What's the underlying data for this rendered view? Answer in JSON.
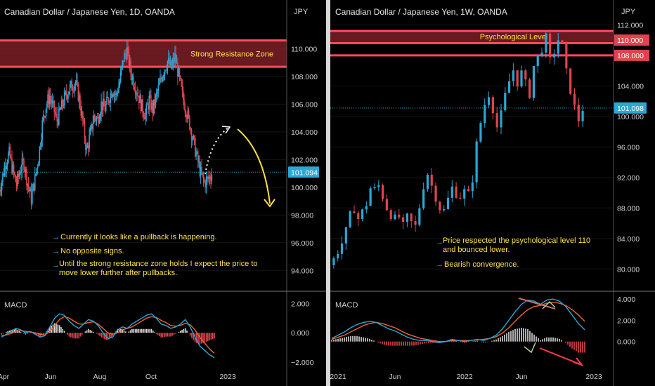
{
  "chart_data": [
    {
      "type": "candlestick",
      "title": "Canadian Dollar / Japanese Yen, 1D, OANDA",
      "currency_label": "JPY",
      "ylim": [
        93,
        112
      ],
      "price_ticks": [
        "110.000",
        "108.000",
        "106.000",
        "104.000",
        "102.000",
        "100.000",
        "98.000",
        "96.000",
        "94.000"
      ],
      "price_tick_values": [
        110,
        108,
        106,
        104,
        102,
        100,
        98,
        96,
        94
      ],
      "last_price": "101.094",
      "last_price_value": 101.094,
      "time_ticks": [
        "Apr",
        "Jun",
        "Aug",
        "Oct",
        "2023"
      ],
      "zone": {
        "label": "Strong Resistance Zone",
        "from": 108.7,
        "to": 110.6
      },
      "annotations": [
        "Currently it looks like a pullback is happening.",
        "No opposite signs.",
        "Until the strong resistance zone holds I expect the price to move lower further after pullbacks."
      ],
      "close_path": [
        99.5,
        100.5,
        101.8,
        102.4,
        101.2,
        100.2,
        101.3,
        101.8,
        100.3,
        99.2,
        100.6,
        102.2,
        104.6,
        105.9,
        106.6,
        105.7,
        104.8,
        105.6,
        106.4,
        107.0,
        107.3,
        107.6,
        106.4,
        104.7,
        102.6,
        103.8,
        105.1,
        104.9,
        106.0,
        105.7,
        106.4,
        107.1,
        106.6,
        107.6,
        109.3,
        109.9,
        108.3,
        107.5,
        106.7,
        105.8,
        105.2,
        106.3,
        105.6,
        106.6,
        107.6,
        108.5,
        109.1,
        108.6,
        109.4,
        108.1,
        106.6,
        105.6,
        104.6,
        103.3,
        102.1,
        101.0,
        100.3,
        100.6,
        101.0
      ],
      "macd": {
        "label": "MACD",
        "ylim": [
          -2.2,
          2.6
        ],
        "ticks": [
          "2.000",
          "0.000",
          "−2.000"
        ],
        "tick_values": [
          2,
          0,
          -2
        ],
        "macd_line": [
          -0.3,
          -0.1,
          0.1,
          0.3,
          0.2,
          0.0,
          0.1,
          -0.1,
          -0.3,
          -0.2,
          0.4,
          1.0,
          1.3,
          1.2,
          0.8,
          0.5,
          0.3,
          0.6,
          0.9,
          0.8,
          0.5,
          0.0,
          -0.4,
          -0.3,
          0.2,
          0.4,
          0.3,
          0.6,
          0.8,
          1.0,
          1.2,
          1.3,
          1.0,
          0.6,
          0.5,
          0.3,
          0.4,
          0.6,
          0.9,
          0.4,
          -0.3,
          -0.9,
          -1.2,
          -1.5,
          -1.7
        ],
        "signal_line": [
          -0.2,
          -0.15,
          -0.05,
          0.1,
          0.15,
          0.1,
          0.05,
          0.0,
          -0.1,
          -0.15,
          0.1,
          0.5,
          0.9,
          1.1,
          1.0,
          0.8,
          0.6,
          0.6,
          0.7,
          0.75,
          0.6,
          0.3,
          0.0,
          -0.1,
          0.0,
          0.2,
          0.3,
          0.4,
          0.6,
          0.8,
          1.0,
          1.1,
          1.05,
          0.85,
          0.7,
          0.5,
          0.45,
          0.5,
          0.65,
          0.55,
          0.2,
          -0.3,
          -0.7,
          -1.1,
          -1.4
        ]
      }
    },
    {
      "type": "candlestick",
      "title": "Canadian Dollar / Japanese Yen, 1W, OANDA",
      "currency_label": "JPY",
      "ylim": [
        78,
        112.5
      ],
      "price_ticks": [
        "112.000",
        "104.000",
        "100.000",
        "96.000",
        "92.000",
        "88.000",
        "84.000",
        "80.000"
      ],
      "price_tick_values": [
        112,
        104,
        100,
        96,
        92,
        88,
        84,
        80
      ],
      "highlight_levels": [
        {
          "label": "110.000",
          "value": 110
        },
        {
          "label": "108.000",
          "value": 108
        }
      ],
      "last_price": "101.098",
      "last_price_value": 101.098,
      "time_ticks": [
        "2021",
        "Jun",
        "2022",
        "Jun",
        "2023"
      ],
      "zone": {
        "label": "Psychological Level",
        "from": 109.6,
        "to": 111.2
      },
      "annotations": [
        "Price respected the psychological level 110 and bounced lower.",
        "Bearish convergence."
      ],
      "close_path": [
        80.5,
        81.2,
        82.5,
        83.4,
        84.8,
        86.8,
        88.1,
        86.6,
        87.4,
        88.6,
        90.6,
        90.3,
        90.9,
        89.6,
        88.1,
        87.3,
        86.4,
        86.8,
        85.4,
        86.6,
        86.0,
        85.5,
        88.2,
        91.1,
        92.6,
        90.9,
        89.6,
        88.1,
        87.6,
        89.1,
        90.6,
        90.1,
        89.6,
        90.1,
        89.6,
        92.0,
        96.2,
        99.2,
        101.6,
        103.1,
        101.2,
        98.6,
        100.1,
        102.6,
        104.6,
        106.1,
        104.6,
        105.6,
        104.1,
        103.1,
        106.6,
        107.6,
        109.1,
        110.1,
        107.1,
        108.6,
        110.1,
        109.1,
        105.6,
        103.6,
        101.1,
        99.6,
        101.1
      ],
      "macd": {
        "label": "MACD",
        "ylim": [
          -2.2,
          4.4
        ],
        "ticks": [
          "4.000",
          "2.000",
          "0.000"
        ],
        "tick_values": [
          4,
          2,
          0
        ],
        "macd_line": [
          0.3,
          0.6,
          0.9,
          1.3,
          1.6,
          1.8,
          1.9,
          1.8,
          1.5,
          1.2,
          1.0,
          0.7,
          0.4,
          0.2,
          0.1,
          0.1,
          0.0,
          -0.1,
          0.0,
          0.2,
          0.1,
          0.0,
          0.1,
          0.2,
          0.1,
          0.3,
          0.6,
          1.2,
          2.0,
          2.8,
          3.5,
          3.9,
          3.8,
          3.5,
          3.9,
          4.0,
          3.8,
          3.3,
          2.5,
          1.7,
          1.1
        ],
        "signal_line": [
          0.2,
          0.4,
          0.6,
          0.9,
          1.2,
          1.5,
          1.7,
          1.8,
          1.7,
          1.5,
          1.3,
          1.0,
          0.7,
          0.5,
          0.3,
          0.2,
          0.1,
          0.0,
          0.0,
          0.1,
          0.1,
          0.1,
          0.1,
          0.15,
          0.2,
          0.3,
          0.45,
          0.8,
          1.3,
          1.9,
          2.5,
          3.0,
          3.3,
          3.4,
          3.6,
          3.7,
          3.6,
          3.4,
          3.0,
          2.5,
          1.9
        ]
      }
    }
  ]
}
